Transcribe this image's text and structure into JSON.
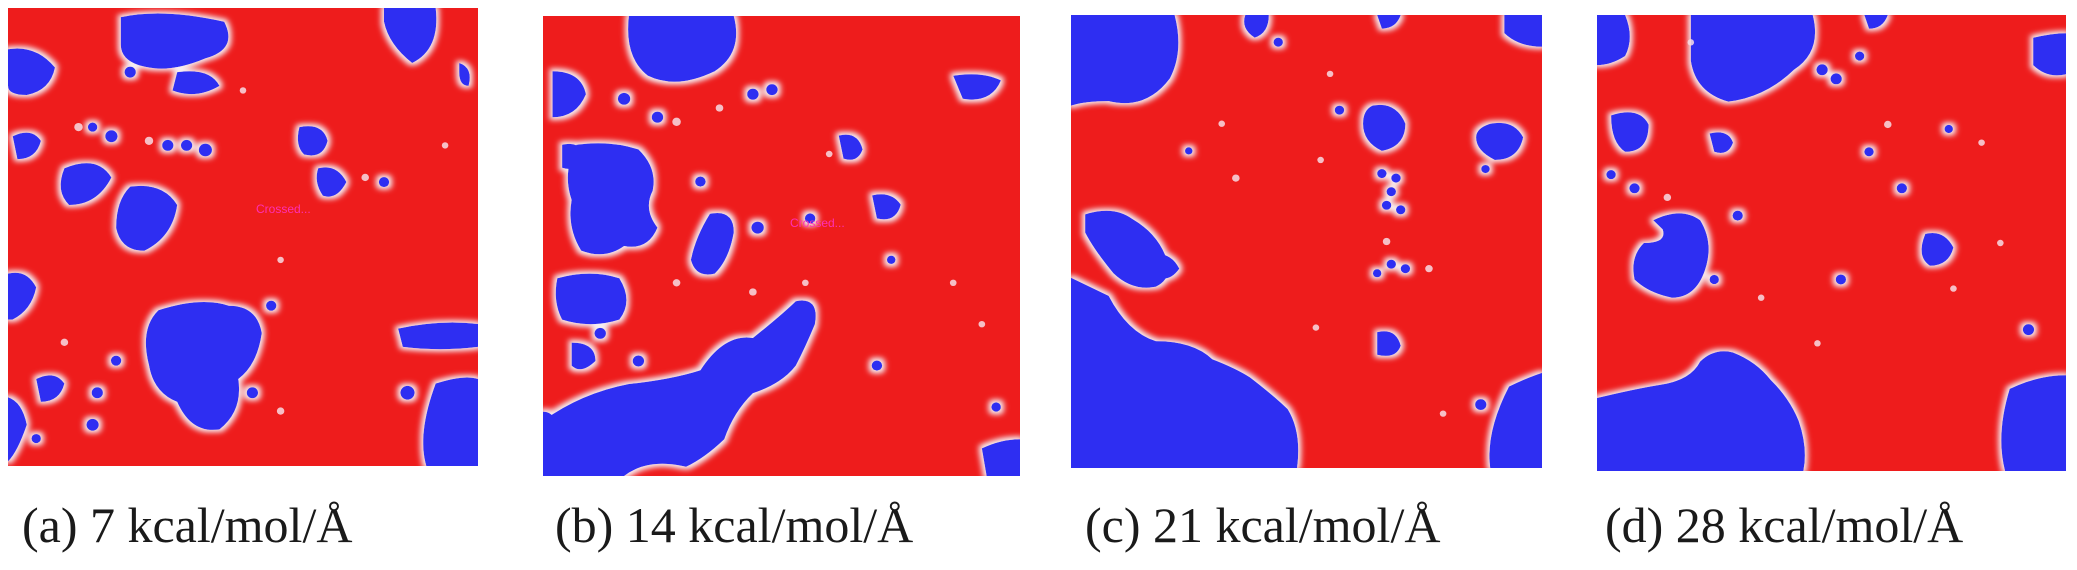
{
  "figure": {
    "colors": {
      "phase_red": "#ee1c1c",
      "phase_blue": "#2e2ef2",
      "interface_white": "#f6eef2",
      "caption_text": "#1a1a1a",
      "small_label": "#ff2fb4"
    },
    "panels": [
      {
        "id": "a",
        "caption": "(a) 7 kcal/mol/Å",
        "small_label": "Crossed..."
      },
      {
        "id": "b",
        "caption": "(b) 14 kcal/mol/Å",
        "small_label": "Crossed..."
      },
      {
        "id": "c",
        "caption": "(c) 21 kcal/mol/Å",
        "small_label": ""
      },
      {
        "id": "d",
        "caption": "(d) 28 kcal/mol/Å",
        "small_label": ""
      }
    ]
  }
}
